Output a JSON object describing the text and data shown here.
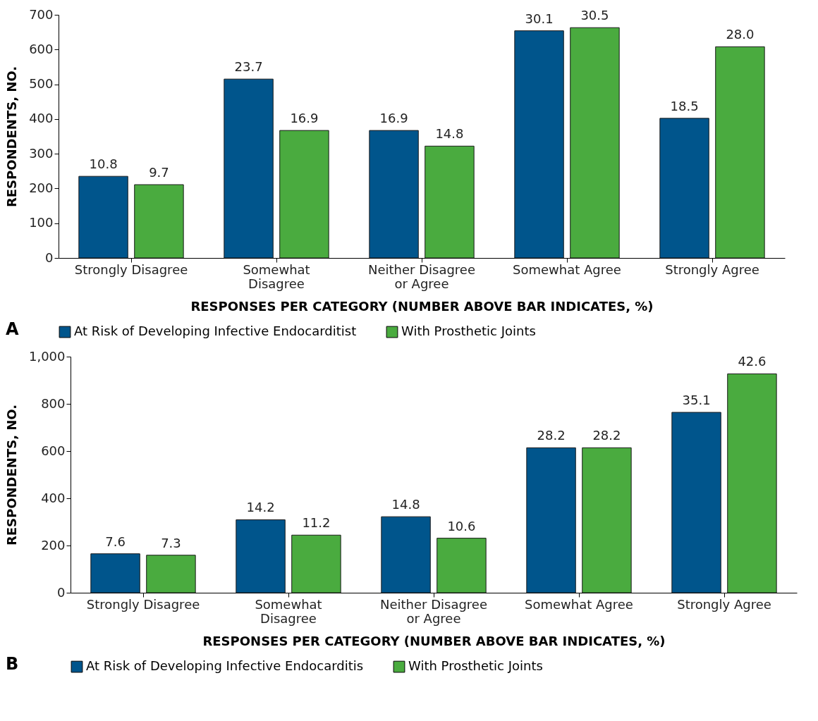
{
  "chart_data": [
    {
      "type": "bar",
      "categories": [
        "Strongly Disagree",
        "Somewhat\nDisagree",
        "Neither Disagree\nor Agree",
        "Somewhat Agree",
        "Strongly Agree"
      ],
      "xlabel": "RESPONSES PER CATEGORY (NUMBER ABOVE BAR INDICATES, %)",
      "ylabel": "RESPONDENTS, NO.",
      "ylim": [
        0,
        700
      ],
      "yticks": [
        0,
        100,
        200,
        300,
        400,
        500,
        600,
        700
      ],
      "grid": false,
      "legend": "bottom",
      "annotations": [
        "10.8",
        "23.7",
        "16.9",
        "30.1",
        "18.5",
        "9.7",
        "16.9",
        "14.8",
        "30.5",
        "28.0",
        "A"
      ],
      "series": [
        {
          "name": "At Risk of Developing Infective Endocarditist",
          "color": "#00558c",
          "values": [
            235,
            515,
            367,
            654,
            402
          ]
        },
        {
          "name": "With Prosthetic Joints",
          "color": "#4aab3f",
          "values": [
            211,
            367,
            322,
            663,
            608
          ]
        }
      ]
    },
    {
      "type": "bar",
      "categories": [
        "Strongly Disagree",
        "Somewhat\nDisagree",
        "Neither Disagree\nor Agree",
        "Somewhat Agree",
        "Strongly Agree"
      ],
      "xlabel": "RESPONSES PER CATEGORY (NUMBER ABOVE BAR INDICATES, %)",
      "ylabel": "RESPONDENTS, NO.",
      "ylim": [
        0,
        1000
      ],
      "yticks": [
        0,
        200,
        400,
        600,
        800,
        {
          "value": 1000,
          "label": "1,000"
        }
      ],
      "grid": false,
      "legend": "bottom",
      "annotations": [
        "7.6",
        "14.2",
        "14.8",
        "28.2",
        "35.1",
        "7.3",
        "11.2",
        "10.6",
        "28.2",
        "42.6",
        "B"
      ],
      "series": [
        {
          "name": "At Risk of Developing Infective Endocarditis",
          "color": "#00558c",
          "values": [
            165,
            309,
            322,
            614,
            764
          ]
        },
        {
          "name": "With Prosthetic Joints",
          "color": "#4aab3f",
          "values": [
            159,
            244,
            231,
            614,
            927
          ]
        }
      ]
    }
  ]
}
